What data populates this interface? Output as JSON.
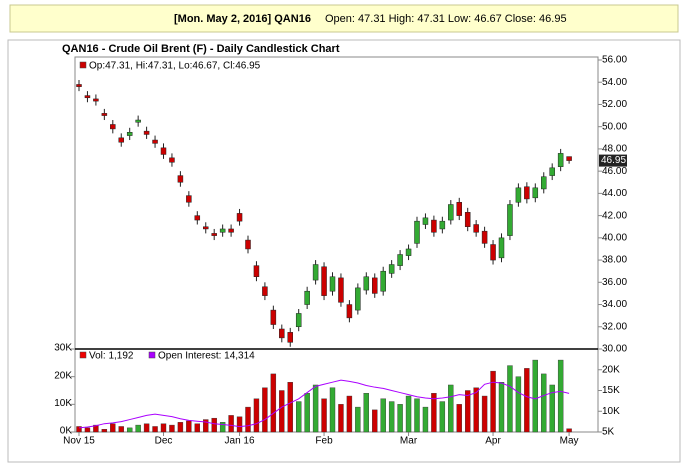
{
  "header": {
    "date_symbol": "[Mon. May 2, 2016] QAN16",
    "quote": "Open: 47.31 High: 47.31 Low: 46.67 Close: 46.95"
  },
  "chart_data": [
    {
      "type": "candlestick",
      "title": "QAN16 - Crude Oil Brent (F) - Daily Candlestick Chart",
      "legend": "Op:47.31, Hi:47.31, Lo:46.67, Cl:46.95",
      "legend_color": "#cc0000",
      "up_color": "#33aa33",
      "down_color": "#cc0000",
      "categories": [
        "Nov 15",
        null,
        null,
        null,
        null,
        null,
        null,
        null,
        null,
        null,
        "Dec",
        null,
        null,
        null,
        null,
        null,
        null,
        null,
        null,
        "Jan 16",
        null,
        null,
        null,
        null,
        null,
        null,
        null,
        null,
        null,
        "Feb",
        null,
        null,
        null,
        null,
        null,
        null,
        null,
        null,
        null,
        "Mar",
        null,
        null,
        null,
        null,
        null,
        null,
        null,
        null,
        null,
        "Apr",
        null,
        null,
        null,
        null,
        null,
        null,
        null,
        null,
        "May"
      ],
      "open": [
        53.8,
        52.8,
        52.5,
        51.2,
        50.2,
        49.0,
        49.2,
        50.4,
        49.6,
        48.8,
        48.1,
        47.2,
        45.6,
        43.8,
        42.0,
        41.0,
        40.4,
        40.5,
        40.8,
        42.2,
        39.8,
        37.5,
        35.6,
        33.5,
        31.8,
        31.5,
        32.0,
        34.0,
        36.2,
        37.4,
        35.2,
        36.4,
        34.0,
        33.5,
        35.3,
        36.4,
        35.2,
        36.8,
        37.5,
        38.4,
        39.5,
        41.2,
        41.6,
        40.8,
        41.6,
        43.2,
        42.3,
        41.2,
        40.6,
        39.4,
        38.2,
        40.2,
        43.2,
        44.6,
        43.6,
        44.4,
        45.6,
        46.4,
        47.31
      ],
      "high": [
        54.2,
        53.2,
        52.9,
        51.6,
        50.6,
        49.4,
        49.9,
        51.0,
        50.0,
        49.2,
        48.5,
        47.6,
        46.0,
        44.2,
        42.4,
        41.4,
        40.8,
        41.2,
        41.2,
        42.6,
        40.2,
        37.9,
        36.0,
        33.9,
        32.2,
        31.9,
        33.6,
        35.6,
        38.0,
        37.8,
        36.9,
        36.8,
        34.4,
        35.9,
        36.9,
        36.8,
        37.4,
        38.0,
        38.9,
        39.4,
        41.9,
        42.2,
        42.0,
        41.9,
        43.4,
        43.6,
        42.7,
        41.6,
        41.0,
        39.8,
        40.4,
        43.4,
        44.9,
        45.0,
        44.9,
        45.9,
        46.7,
        48.0,
        47.31
      ],
      "low": [
        53.2,
        52.2,
        51.9,
        50.6,
        49.4,
        48.2,
        48.8,
        50.0,
        48.9,
        48.1,
        47.1,
        46.4,
        44.6,
        42.8,
        41.2,
        40.4,
        39.8,
        40.1,
        40.1,
        41.1,
        38.6,
        36.1,
        34.4,
        31.8,
        30.6,
        30.2,
        31.6,
        33.6,
        35.8,
        34.4,
        34.8,
        33.8,
        32.4,
        33.1,
        34.9,
        34.6,
        34.8,
        36.4,
        37.1,
        38.0,
        39.1,
        40.8,
        40.1,
        40.4,
        41.2,
        41.6,
        40.6,
        40.1,
        39.1,
        37.6,
        37.8,
        39.8,
        42.8,
        43.1,
        43.2,
        44.0,
        45.2,
        46.0,
        46.67
      ],
      "close": [
        53.6,
        52.6,
        52.3,
        51.0,
        49.8,
        48.6,
        49.5,
        50.6,
        49.3,
        48.5,
        47.5,
        46.8,
        45.0,
        43.2,
        41.6,
        40.8,
        40.2,
        40.8,
        40.5,
        41.5,
        39.0,
        36.5,
        34.8,
        32.2,
        31.0,
        30.6,
        33.2,
        35.2,
        37.6,
        34.8,
        36.5,
        34.2,
        32.8,
        35.5,
        36.5,
        35.0,
        37.0,
        37.6,
        38.5,
        39.0,
        41.5,
        41.8,
        40.5,
        41.5,
        43.0,
        42.0,
        41.0,
        40.5,
        39.5,
        38.0,
        40.0,
        43.0,
        44.5,
        43.5,
        44.5,
        45.5,
        46.3,
        47.6,
        46.95
      ],
      "last_price": 46.95,
      "ylim": [
        30,
        56
      ],
      "yticks": [
        {
          "value": 30,
          "label": "30.00"
        },
        {
          "value": 32,
          "label": "32.00"
        },
        {
          "value": 34,
          "label": "34.00"
        },
        {
          "value": 36,
          "label": "36.00"
        },
        {
          "value": 38,
          "label": "38.00"
        },
        {
          "value": 40,
          "label": "40.00"
        },
        {
          "value": 42,
          "label": "42.00"
        },
        {
          "value": 44,
          "label": "44.00"
        },
        {
          "value": 46,
          "label": "46.00"
        },
        {
          "value": 48,
          "label": "48.00"
        },
        {
          "value": 50,
          "label": "50.00"
        },
        {
          "value": 52,
          "label": "52.00"
        },
        {
          "value": 54,
          "label": "54.00"
        },
        {
          "value": 56,
          "label": "56.00"
        }
      ]
    },
    {
      "type": "volume",
      "series": [
        {
          "name": "Vol: 1,192",
          "color": "#ee0000",
          "values": [
            2000,
            1500,
            2500,
            1000,
            3000,
            2000,
            1500,
            2500,
            3000,
            2000,
            3000,
            2500,
            3500,
            4000,
            3000,
            4500,
            5000,
            3500,
            6000,
            5500,
            9000,
            12000,
            16000,
            21000,
            15000,
            18000,
            11000,
            14000,
            17000,
            12000,
            16000,
            10000,
            13000,
            9000,
            14000,
            8000,
            12000,
            11000,
            10000,
            13000,
            12000,
            9000,
            14000,
            11000,
            17000,
            10000,
            15000,
            16000,
            13000,
            22000,
            18000,
            24000,
            20000,
            23000,
            26000,
            21000,
            17000,
            26000,
            1192
          ]
        },
        {
          "name": "Open Interest: 14,314",
          "color": "#aa00ff",
          "axis": "y2",
          "values": [
            6000,
            6200,
            6500,
            7000,
            7200,
            7500,
            8000,
            8500,
            9000,
            9300,
            9000,
            8700,
            8200,
            7800,
            7600,
            7400,
            7000,
            6800,
            6600,
            6300,
            6500,
            7000,
            8000,
            9500,
            11000,
            12000,
            13000,
            14500,
            16000,
            16500,
            17000,
            17500,
            17200,
            16800,
            16200,
            15800,
            15500,
            15000,
            14500,
            14000,
            13500,
            13200,
            13000,
            13200,
            13500,
            14000,
            13800,
            14500,
            16500,
            17000,
            16800,
            16000,
            14500,
            13500,
            13000,
            13800,
            14500,
            14800,
            14314
          ]
        }
      ],
      "ylim": [
        0,
        30000
      ],
      "yticks": [
        {
          "value": 0,
          "label": "0K"
        },
        {
          "value": 10000,
          "label": "10K"
        },
        {
          "value": 20000,
          "label": "20K"
        },
        {
          "value": 30000,
          "label": "30K"
        }
      ],
      "y2lim": [
        5000,
        25000
      ],
      "y2ticks": [
        {
          "value": 5000,
          "label": "5K"
        },
        {
          "value": 10000,
          "label": "10K"
        },
        {
          "value": 15000,
          "label": "15K"
        },
        {
          "value": 20000,
          "label": "20K"
        }
      ]
    }
  ]
}
